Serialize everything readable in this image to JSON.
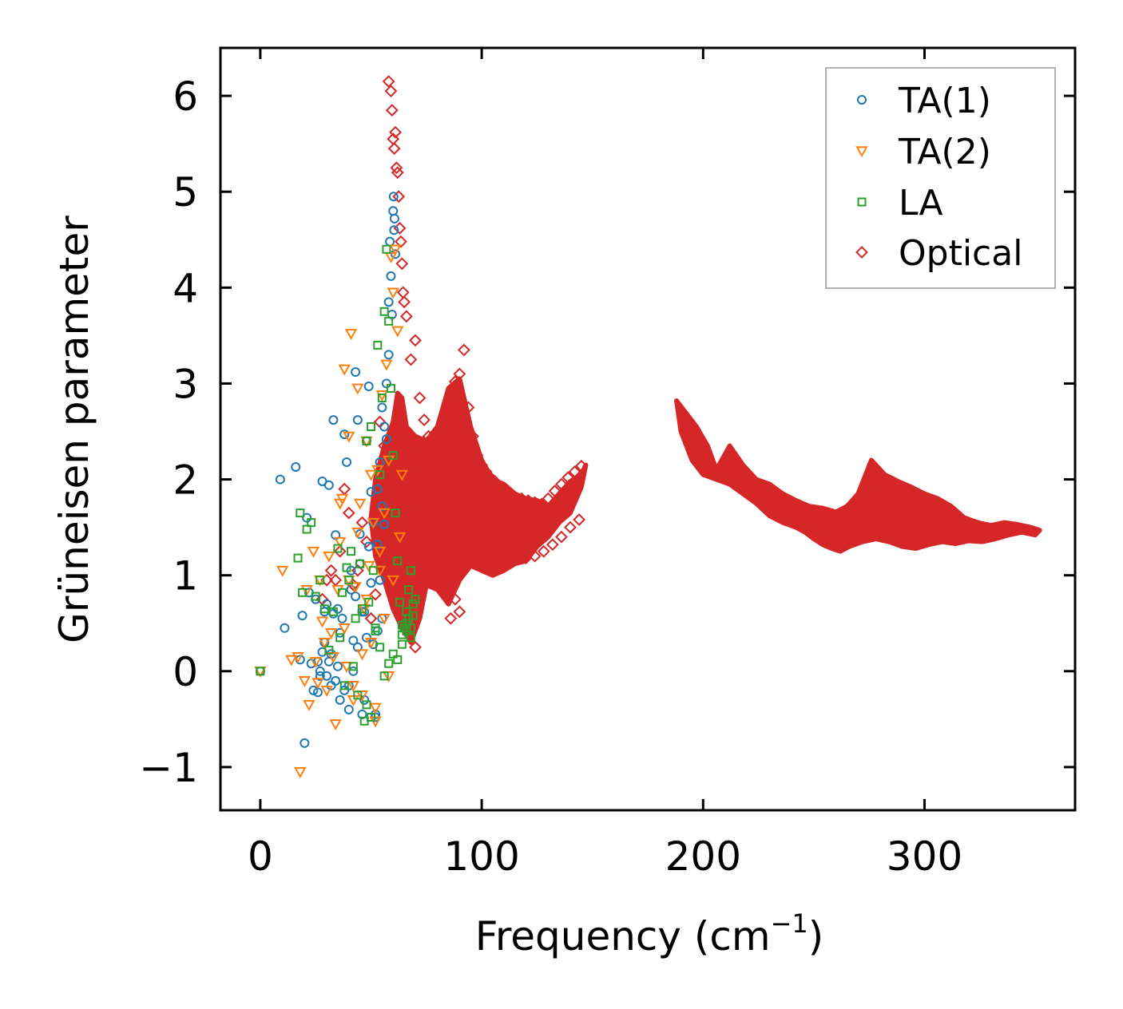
{
  "chart_data": {
    "type": "scatter",
    "title": "",
    "xlabel": "Frequency (cm",
    "xlabel_sup": "−1",
    "xlabel_close": ")",
    "ylabel": "Grüneisen parameter",
    "xlim": [
      -18,
      368
    ],
    "ylim": [
      -1.45,
      6.5
    ],
    "x_ticks": [
      0,
      100,
      200,
      300
    ],
    "x_tick_labels": [
      "0",
      "100",
      "200",
      "300"
    ],
    "y_ticks": [
      -1,
      0,
      1,
      2,
      3,
      4,
      5,
      6
    ],
    "y_tick_labels": [
      "−1",
      "0",
      "1",
      "2",
      "3",
      "4",
      "5",
      "6"
    ],
    "grid": false,
    "legend_position": "top-right",
    "series": [
      {
        "name": "TA(1)",
        "marker": "circle",
        "color": "#1f77b4",
        "x": [
          0,
          9,
          11,
          16,
          18,
          19,
          20,
          21,
          22,
          23,
          24,
          25,
          26,
          27,
          28,
          29,
          30,
          31,
          32,
          33,
          34,
          35,
          36,
          37,
          38,
          39,
          40,
          41,
          42,
          43,
          44,
          45,
          46,
          47,
          48,
          49,
          50,
          51,
          52,
          53,
          54,
          55,
          56,
          57,
          58,
          58.5,
          59,
          59.5,
          60,
          60.2,
          60.4,
          60.6,
          61,
          58,
          57,
          56,
          55,
          54,
          53,
          52,
          50,
          48,
          46,
          44,
          42,
          40,
          38,
          36,
          35,
          34,
          33,
          32,
          31,
          30,
          29,
          28,
          27,
          26,
          41,
          43,
          45,
          47,
          49,
          51,
          53,
          55
        ],
        "y": [
          0.0,
          2.0,
          0.45,
          2.13,
          0.12,
          0.58,
          -0.75,
          1.6,
          0.82,
          0.08,
          -0.2,
          0.75,
          -0.22,
          -0.05,
          1.98,
          0.62,
          0.7,
          1.94,
          0.18,
          2.62,
          1.42,
          0.65,
          -0.3,
          0.55,
          2.47,
          2.18,
          -0.15,
          0.85,
          0.32,
          3.12,
          2.62,
          1.43,
          0.62,
          -0.3,
          2.4,
          2.97,
          1.87,
          0.28,
          -0.48,
          1.32,
          2.18,
          0.55,
          1.53,
          2.42,
          3.85,
          4.48,
          4.12,
          3.72,
          4.8,
          4.95,
          4.6,
          4.72,
          4.35,
          3.3,
          3.0,
          2.55,
          1.72,
          0.95,
          0.42,
          -0.45,
          0.92,
          0.35,
          -0.45,
          0.25,
          0.0,
          -0.4,
          -0.2,
          0.4,
          0.05,
          -0.1,
          0.6,
          -0.15,
          0.1,
          -0.05,
          0.3,
          0.2,
          0.0,
          0.1,
          1.05,
          0.78,
          1.12,
          0.62,
          1.3,
          1.55,
          1.9,
          2.75
        ]
      },
      {
        "name": "TA(2)",
        "marker": "triangle-down",
        "color": "#ff7f0e",
        "x": [
          0,
          10,
          14,
          17,
          18,
          20,
          21,
          22,
          24,
          25,
          26,
          27,
          28,
          29,
          30,
          31,
          32,
          33,
          34,
          35,
          36,
          37,
          38,
          39,
          40,
          41,
          42,
          43,
          44,
          45,
          46,
          47,
          48,
          49,
          50,
          51,
          52,
          53,
          54,
          55,
          56,
          57,
          58,
          59,
          60,
          61,
          62,
          63,
          64,
          60,
          58,
          56,
          54,
          52,
          50,
          48,
          46,
          44,
          42,
          40,
          38,
          36
        ],
        "y": [
          0.0,
          1.05,
          0.12,
          0.15,
          -1.05,
          -0.1,
          0.85,
          -0.35,
          1.25,
          0.1,
          -0.12,
          0.95,
          0.52,
          0.3,
          -0.2,
          1.2,
          0.4,
          0.15,
          -0.55,
          0.85,
          1.35,
          1.8,
          3.15,
          0.05,
          2.45,
          3.52,
          -0.3,
          0.88,
          2.95,
          1.75,
          -0.25,
          0.65,
          2.4,
          1.1,
          0.3,
          1.55,
          -0.38,
          2.1,
          1.05,
          2.88,
          1.65,
          3.2,
          2.2,
          4.32,
          3.95,
          4.4,
          3.55,
          1.4,
          2.05,
          0.95,
          -0.05,
          0.55,
          1.25,
          -0.52,
          2.05,
          0.75,
          0.18,
          1.45,
          -0.15,
          0.95,
          0.45,
          1.75
        ]
      },
      {
        "name": "LA",
        "marker": "square",
        "color": "#2ca02c",
        "x": [
          0,
          17,
          18,
          19,
          21,
          23,
          25,
          27,
          29,
          31,
          33,
          35,
          37,
          39,
          41,
          43,
          45,
          47,
          48,
          49,
          50,
          51,
          52,
          53,
          54,
          55,
          56,
          57,
          58,
          59,
          60,
          61,
          62,
          63,
          64,
          65,
          66,
          67,
          68,
          69,
          70,
          64,
          62,
          60,
          58,
          56,
          54,
          52,
          50,
          48,
          46,
          44,
          42,
          40,
          38,
          36,
          66,
          67,
          68,
          69,
          68,
          66,
          64
        ],
        "y": [
          0.0,
          1.18,
          1.65,
          0.82,
          1.48,
          1.55,
          0.78,
          0.95,
          0.65,
          0.22,
          0.62,
          1.28,
          0.82,
          1.08,
          1.25,
          0.55,
          1.12,
          -0.52,
          2.4,
          0.72,
          2.55,
          1.05,
          0.45,
          3.4,
          2.05,
          2.85,
          3.75,
          4.4,
          3.65,
          2.95,
          2.25,
          1.65,
          1.15,
          0.72,
          0.38,
          0.45,
          0.62,
          0.85,
          1.05,
          0.58,
          0.75,
          0.28,
          0.12,
          0.18,
          0.08,
          -0.05,
          0.25,
          0.42,
          -0.48,
          -0.35,
          0.65,
          -0.25,
          0.05,
          0.95,
          -0.15,
          0.35,
          0.5,
          0.55,
          0.45,
          0.7,
          0.35,
          0.42,
          0.48
        ]
      },
      {
        "name": "Optical",
        "marker": "diamond",
        "color": "#d62728",
        "regions": [
          {
            "x": [
              60,
              62,
              64,
              66,
              70,
              75,
              80,
              85,
              90,
              95,
              100,
              105,
              110,
              115,
              120,
              125,
              130,
              135,
              140,
              145,
              147,
              145,
              140,
              135,
              130,
              125,
              120,
              115,
              110,
              105,
              100,
              95,
              90,
              85,
              80,
              75,
              72,
              68,
              64,
              60,
              56,
              52,
              50,
              52,
              56
            ],
            "y": [
              2.6,
              2.9,
              2.85,
              2.55,
              2.45,
              2.4,
              2.55,
              2.95,
              3.05,
              2.55,
              2.2,
              2.0,
              1.95,
              1.85,
              1.8,
              1.78,
              1.72,
              1.85,
              1.98,
              2.05,
              2.15,
              1.92,
              1.65,
              1.55,
              1.4,
              1.3,
              1.15,
              1.12,
              1.05,
              1.0,
              1.05,
              1.1,
              0.95,
              0.7,
              0.85,
              0.9,
              0.55,
              0.3,
              0.45,
              0.65,
              0.95,
              1.2,
              1.6,
              2.0,
              2.35
            ]
          },
          {
            "x": [
              188,
              192,
              197,
              202,
              206,
              212,
              218,
              224,
              230,
              236,
              242,
              248,
              254,
              260,
              265,
              270,
              276,
              282,
              288,
              294,
              300,
              306,
              312,
              318,
              324,
              330,
              336,
              342,
              348,
              352,
              350,
              344,
              338,
              332,
              326,
              320,
              314,
              308,
              302,
              296,
              290,
              284,
              278,
              272,
              266,
              262,
              258,
              254,
              250,
              246,
              242,
              236,
              230,
              224,
              218,
              212,
              206,
              200,
              195,
              190
            ],
            "y": [
              2.82,
              2.7,
              2.55,
              2.35,
              2.1,
              2.35,
              2.15,
              2.0,
              1.95,
              1.85,
              1.78,
              1.72,
              1.7,
              1.66,
              1.72,
              1.85,
              2.2,
              2.05,
              1.98,
              1.92,
              1.85,
              1.8,
              1.72,
              1.6,
              1.55,
              1.52,
              1.55,
              1.53,
              1.5,
              1.47,
              1.42,
              1.45,
              1.42,
              1.38,
              1.35,
              1.36,
              1.33,
              1.35,
              1.32,
              1.28,
              1.3,
              1.35,
              1.38,
              1.35,
              1.3,
              1.25,
              1.28,
              1.32,
              1.38,
              1.45,
              1.5,
              1.55,
              1.62,
              1.75,
              1.85,
              1.95,
              2.0,
              2.05,
              2.2,
              2.5
            ]
          }
        ],
        "x": [
          58,
          59,
          59.5,
          60,
          60.5,
          61,
          61.5,
          62,
          62.5,
          63,
          63.5,
          64,
          64.5,
          65,
          66,
          68,
          70,
          72,
          74,
          76,
          78,
          80,
          82,
          84,
          86,
          88,
          90,
          92,
          94,
          96,
          98,
          100,
          102,
          104,
          106,
          108,
          110,
          112,
          115,
          118,
          121,
          124,
          127,
          130,
          133,
          136,
          139,
          142,
          145,
          72,
          78,
          84,
          88,
          92,
          96,
          100,
          104,
          108,
          112,
          116,
          120,
          124,
          128,
          132,
          136,
          140,
          144,
          86,
          90,
          80,
          74,
          70,
          68,
          66,
          64,
          62,
          60,
          58,
          56,
          54,
          52,
          50,
          48,
          46,
          44,
          42,
          40,
          38,
          36,
          34,
          32,
          30,
          28,
          92,
          95,
          99,
          103,
          107,
          111,
          115
        ],
        "y": [
          6.15,
          6.05,
          5.85,
          5.55,
          5.45,
          5.62,
          5.25,
          5.2,
          4.95,
          4.62,
          4.48,
          4.25,
          3.95,
          3.85,
          3.7,
          3.25,
          3.45,
          2.85,
          2.62,
          2.45,
          2.35,
          2.42,
          2.55,
          2.65,
          2.85,
          3.02,
          3.1,
          3.35,
          2.75,
          2.45,
          2.25,
          2.15,
          2.08,
          2.02,
          1.98,
          1.92,
          1.88,
          1.85,
          1.82,
          1.8,
          1.78,
          1.76,
          1.74,
          1.8,
          1.88,
          1.95,
          2.02,
          2.08,
          2.14,
          0.95,
          1.05,
          0.9,
          0.75,
          1.05,
          1.25,
          1.35,
          1.4,
          1.32,
          1.28,
          1.22,
          1.18,
          1.2,
          1.25,
          1.32,
          1.4,
          1.5,
          1.58,
          0.55,
          0.62,
          1.45,
          1.2,
          0.25,
          0.5,
          0.75,
          0.9,
          1.2,
          1.6,
          1.9,
          2.35,
          2.6,
          0.8,
          0.55,
          1.35,
          1.55,
          1.05,
          0.9,
          1.65,
          1.9,
          1.25,
          0.95,
          1.05,
          0.95,
          0.75,
          1.6,
          1.45,
          1.72,
          1.55,
          1.6,
          1.5,
          1.45
        ]
      }
    ]
  }
}
